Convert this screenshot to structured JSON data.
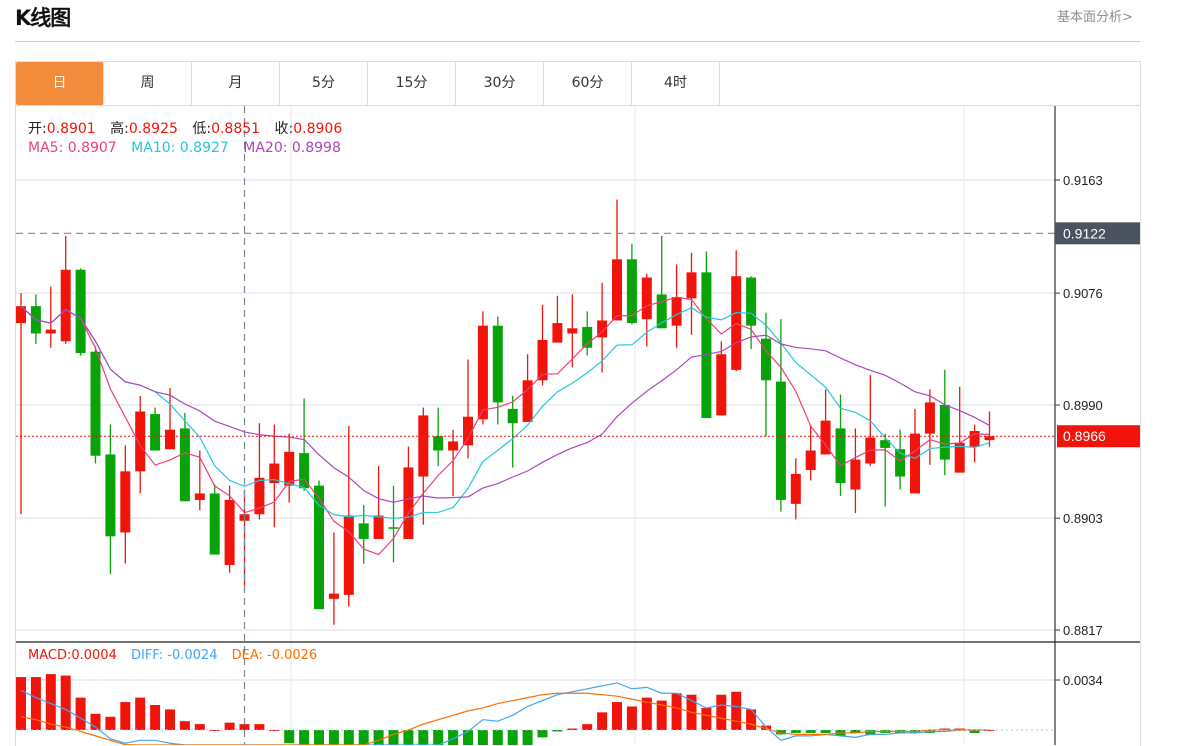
{
  "header": {
    "title": "K线图",
    "fundamental_link": "基本面分析>"
  },
  "tabs": [
    {
      "label": "日",
      "active": true
    },
    {
      "label": "周"
    },
    {
      "label": "月"
    },
    {
      "label": "5分"
    },
    {
      "label": "15分"
    },
    {
      "label": "30分"
    },
    {
      "label": "60分"
    },
    {
      "label": "4时"
    }
  ],
  "ohlc_legend": {
    "open_label": "开:",
    "open": "0.8901",
    "high_label": "高:",
    "high": "0.8925",
    "low_label": "低:",
    "low": "0.8851",
    "close_label": "收:",
    "close": "0.8906"
  },
  "ma_legend": {
    "ma5": "MA5: 0.8907",
    "ma10": "MA10: 0.8927",
    "ma20": "MA20: 0.8998"
  },
  "macd_legend": {
    "macd": "MACD:0.0004",
    "diff": "DIFF: -0.0024",
    "dea": "DEA: -0.0026"
  },
  "colors": {
    "up": "#f0140a",
    "down": "#08a308",
    "ma5": "#ec407a",
    "ma10": "#26c6da",
    "ma20": "#ab47bc",
    "diff": "#42a5f5",
    "dea": "#ff6d00",
    "accent": "#f28c3c",
    "marker": "#4c5360"
  },
  "chart_data": {
    "type": "candlestick",
    "price_axis": {
      "ticks": [
        "0.9163",
        "0.9076",
        "0.8990",
        "0.8903",
        "0.8817"
      ],
      "range": [
        0.88,
        0.922
      ]
    },
    "crosshair_price": "0.9122",
    "last_price": "0.8966",
    "hovered_index": 15,
    "candles_ohlc": [
      [
        0.9053,
        0.9076,
        0.8906,
        0.9066
      ],
      [
        0.9066,
        0.9075,
        0.9037,
        0.9045
      ],
      [
        0.9045,
        0.9081,
        0.9034,
        0.9048
      ],
      [
        0.9039,
        0.912,
        0.9037,
        0.9094
      ],
      [
        0.9094,
        0.9095,
        0.9028,
        0.903
      ],
      [
        0.9031,
        0.9035,
        0.8945,
        0.8951
      ],
      [
        0.8952,
        0.8975,
        0.886,
        0.8889
      ],
      [
        0.8892,
        0.8959,
        0.8868,
        0.8939
      ],
      [
        0.8939,
        0.8997,
        0.8922,
        0.8985
      ],
      [
        0.8983,
        0.8988,
        0.8955,
        0.8955
      ],
      [
        0.8956,
        0.9003,
        0.8956,
        0.8971
      ],
      [
        0.8972,
        0.8984,
        0.8916,
        0.8916
      ],
      [
        0.8917,
        0.8955,
        0.8909,
        0.8922
      ],
      [
        0.8922,
        0.8929,
        0.8875,
        0.8875
      ],
      [
        0.8867,
        0.8928,
        0.8861,
        0.8917
      ],
      [
        0.8901,
        0.8925,
        0.8851,
        0.8906
      ],
      [
        0.8906,
        0.8976,
        0.8902,
        0.8934
      ],
      [
        0.893,
        0.8975,
        0.8896,
        0.8945
      ],
      [
        0.8928,
        0.8968,
        0.8915,
        0.8954
      ],
      [
        0.8953,
        0.8995,
        0.8924,
        0.8926
      ],
      [
        0.8928,
        0.8932,
        0.8833,
        0.8833
      ],
      [
        0.8841,
        0.8892,
        0.8821,
        0.8845
      ],
      [
        0.8844,
        0.8974,
        0.8835,
        0.8905
      ],
      [
        0.8899,
        0.8913,
        0.8868,
        0.8887
      ],
      [
        0.8887,
        0.8943,
        0.8887,
        0.8905
      ],
      [
        0.8896,
        0.8928,
        0.8869,
        0.8895
      ],
      [
        0.8887,
        0.8958,
        0.8887,
        0.8942
      ],
      [
        0.8935,
        0.8988,
        0.8898,
        0.8982
      ],
      [
        0.8966,
        0.8988,
        0.8943,
        0.8955
      ],
      [
        0.8955,
        0.8971,
        0.892,
        0.8962
      ],
      [
        0.8959,
        0.9025,
        0.8949,
        0.8981
      ],
      [
        0.8979,
        0.9062,
        0.8975,
        0.9051
      ],
      [
        0.9051,
        0.9058,
        0.8975,
        0.8992
      ],
      [
        0.8987,
        0.8997,
        0.8942,
        0.8976
      ],
      [
        0.8977,
        0.9029,
        0.8977,
        0.9009
      ],
      [
        0.9009,
        0.9067,
        0.9005,
        0.904
      ],
      [
        0.9038,
        0.9074,
        0.9038,
        0.9053
      ],
      [
        0.9045,
        0.9075,
        0.9019,
        0.9049
      ],
      [
        0.905,
        0.9062,
        0.9028,
        0.9034
      ],
      [
        0.9042,
        0.9084,
        0.9015,
        0.9055
      ],
      [
        0.9055,
        0.9148,
        0.9055,
        0.9102
      ],
      [
        0.9102,
        0.9114,
        0.9052,
        0.9053
      ],
      [
        0.9056,
        0.9091,
        0.9035,
        0.9088
      ],
      [
        0.9075,
        0.912,
        0.9049,
        0.9049
      ],
      [
        0.9051,
        0.9098,
        0.9034,
        0.9073
      ],
      [
        0.9072,
        0.9107,
        0.9044,
        0.9092
      ],
      [
        0.9092,
        0.9108,
        0.898,
        0.898
      ],
      [
        0.8982,
        0.9039,
        0.8982,
        0.9029
      ],
      [
        0.9017,
        0.9109,
        0.9016,
        0.9089
      ],
      [
        0.9088,
        0.9089,
        0.9033,
        0.9051
      ],
      [
        0.9041,
        0.9061,
        0.8966,
        0.9009
      ],
      [
        0.9008,
        0.9056,
        0.8908,
        0.8917
      ],
      [
        0.8914,
        0.8949,
        0.8902,
        0.8937
      ],
      [
        0.894,
        0.8975,
        0.8932,
        0.8955
      ],
      [
        0.8952,
        0.9002,
        0.8952,
        0.8978
      ],
      [
        0.8972,
        0.8998,
        0.892,
        0.893
      ],
      [
        0.8925,
        0.8972,
        0.8907,
        0.8948
      ],
      [
        0.8945,
        0.9013,
        0.8943,
        0.8965
      ],
      [
        0.8963,
        0.8968,
        0.8912,
        0.8957
      ],
      [
        0.8956,
        0.8971,
        0.8925,
        0.8935
      ],
      [
        0.8922,
        0.8987,
        0.8922,
        0.8968
      ],
      [
        0.8968,
        0.9002,
        0.8944,
        0.8992
      ],
      [
        0.899,
        0.9017,
        0.8936,
        0.8948
      ],
      [
        0.8938,
        0.9004,
        0.8938,
        0.8961
      ],
      [
        0.8958,
        0.8975,
        0.8946,
        0.897
      ],
      [
        0.8963,
        0.8985,
        0.8958,
        0.8966
      ]
    ],
    "macd_axis": {
      "ticks": [
        "0.0034"
      ]
    },
    "macd_hist": [
      0.0036,
      0.0036,
      0.0038,
      0.0037,
      0.0022,
      0.0011,
      0.0009,
      0.0019,
      0.0022,
      0.0017,
      0.0014,
      0.0006,
      0.0004,
      0.0,
      0.0005,
      0.0004,
      0.0004,
      0.0,
      -0.0009,
      -0.0018,
      -0.0022,
      -0.0024,
      -0.0025,
      -0.0025,
      -0.0024,
      -0.0023,
      -0.0022,
      -0.0021,
      -0.002,
      -0.002,
      -0.0019,
      -0.0018,
      -0.0017,
      -0.0015,
      -0.0012,
      -0.0005,
      -0.0001,
      0.0001,
      0.0004,
      0.0012,
      0.0019,
      0.0016,
      0.0022,
      0.002,
      0.0025,
      0.0024,
      0.0015,
      0.0024,
      0.0026,
      0.0014,
      0.0003,
      -0.0003,
      -0.0002,
      -0.0002,
      -0.0002,
      -0.0004,
      -0.0002,
      -0.0003,
      -0.0002,
      -0.0002,
      -0.0002,
      -0.0002,
      0.0001,
      0.0001,
      -0.0002,
      0.0
    ],
    "diff": [
      0.0027,
      0.0022,
      0.0018,
      0.0014,
      0.0008,
      0.0002,
      -0.0006,
      -0.0009,
      -0.0007,
      -0.0007,
      -0.0009,
      -0.0013,
      -0.0016,
      -0.002,
      -0.0022,
      -0.0024,
      -0.0023,
      -0.0025,
      -0.0028,
      -0.003,
      -0.0036,
      -0.004,
      -0.0038,
      -0.0036,
      -0.0034,
      -0.0032,
      -0.0026,
      -0.002,
      -0.0012,
      -0.0006,
      -0.0001,
      0.0007,
      0.0006,
      0.001,
      0.0016,
      0.002,
      0.0024,
      0.0026,
      0.0028,
      0.003,
      0.0032,
      0.0028,
      0.0029,
      0.0025,
      0.0025,
      0.002,
      0.0015,
      0.0017,
      0.0016,
      0.0014,
      0.0002,
      -0.0007,
      -0.0004,
      -0.0004,
      -0.0003,
      -0.0004,
      -0.0005,
      -0.0003,
      -0.0003,
      -0.0002,
      -0.0002,
      -0.0001,
      -0.0001,
      0.0,
      0.0,
      0.0
    ],
    "dea": [
      0.0009,
      0.0007,
      0.0004,
      0.0002,
      -0.0001,
      -0.0004,
      -0.0007,
      -0.001,
      -0.0012,
      -0.0014,
      -0.0016,
      -0.0018,
      -0.002,
      -0.0022,
      -0.0024,
      -0.0026,
      -0.0027,
      -0.0028,
      -0.0029,
      -0.003,
      -0.0028,
      -0.0022,
      -0.0016,
      -0.0011,
      -0.0007,
      -0.0003,
      0.0,
      0.0004,
      0.0007,
      0.001,
      0.0013,
      0.0015,
      0.0018,
      0.002,
      0.0022,
      0.0024,
      0.0025,
      0.0025,
      0.0025,
      0.0024,
      0.0023,
      0.0021,
      0.0019,
      0.0017,
      0.0015,
      0.0012,
      0.001,
      0.0008,
      0.0006,
      0.0004,
      0.0001,
      -0.0002,
      -0.0003,
      -0.0003,
      -0.0003,
      -0.0002,
      -0.0002,
      -0.0001,
      -0.0001,
      -0.0001,
      -0.0001,
      0.0,
      0.0,
      0.0,
      0.0,
      0.0
    ]
  }
}
